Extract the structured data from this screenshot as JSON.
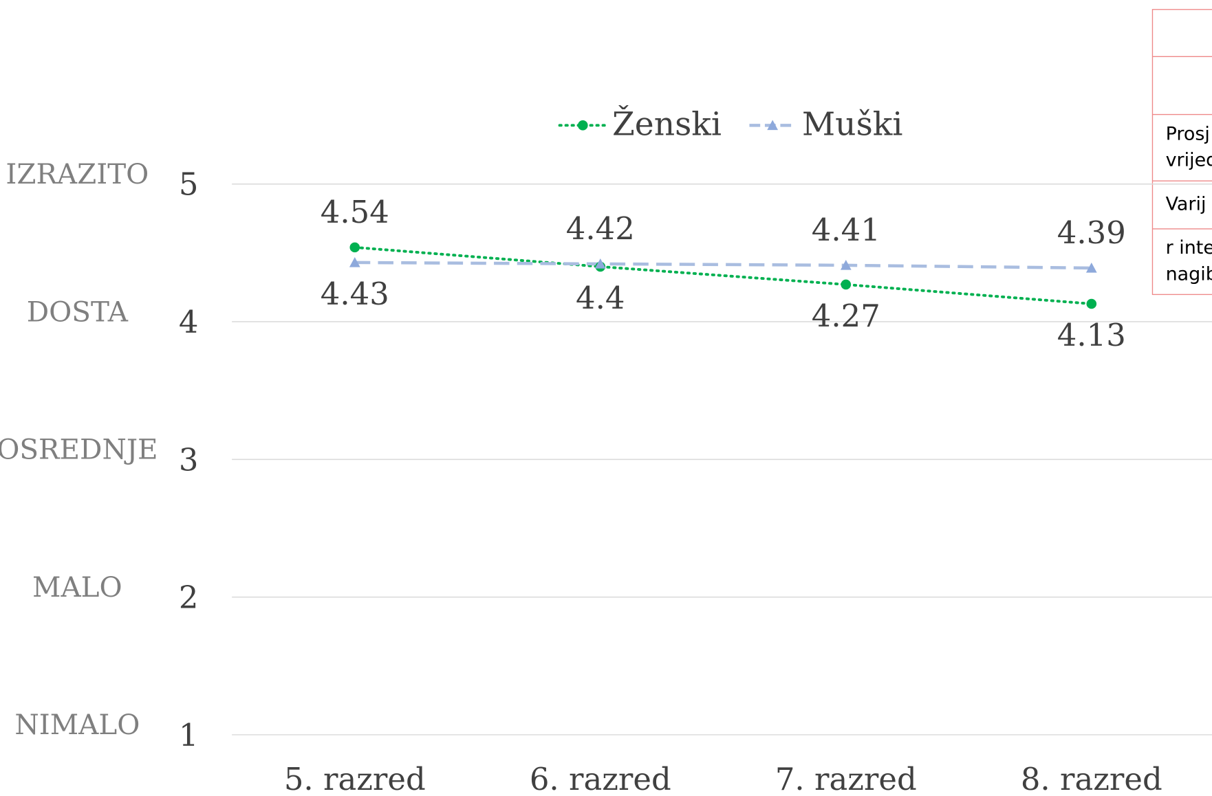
{
  "chart_data": {
    "type": "line",
    "categories": [
      "5. razred",
      "6. razred",
      "7. razred",
      "8. razred"
    ],
    "series": [
      {
        "name": "Ženski",
        "color": "#00b050",
        "values": [
          4.54,
          4.4,
          4.27,
          4.13
        ]
      },
      {
        "name": "Muški",
        "color": "#a9bde0",
        "values": [
          4.43,
          4.42,
          4.41,
          4.39
        ]
      }
    ],
    "ylim": [
      1,
      5
    ],
    "yticks": [
      1,
      2,
      3,
      4,
      5
    ],
    "y_level_labels": [
      "NIMALO",
      "MALO",
      "OSREDNJE",
      "DOSTA",
      "IZRAZITO"
    ],
    "grid": true,
    "legend": "top"
  },
  "table": {
    "rows": [
      [
        "Prosj",
        "vrijed"
      ],
      [
        "Varij"
      ],
      [
        "r inte",
        "nagib"
      ]
    ]
  }
}
